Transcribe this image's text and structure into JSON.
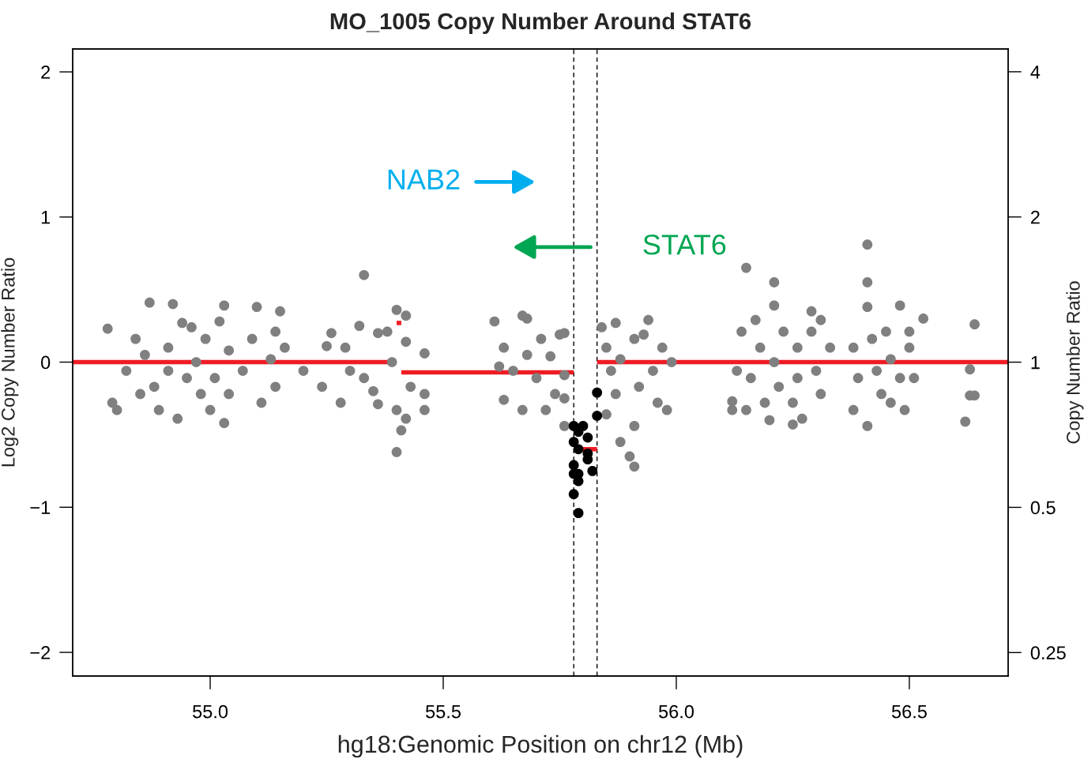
{
  "chart_data": {
    "type": "scatter",
    "title": "MO_1005 Copy Number Around STAT6",
    "xlabel": "hg18:Genomic Position on chr12 (Mb)",
    "ylabel": "Log2 Copy Number Ratio",
    "y2label": "Copy Number Ratio",
    "xlim": [
      54.705,
      56.712
    ],
    "xticks": [
      {
        "value": 55,
        "label": "55.0"
      },
      {
        "value": 55.5,
        "label": "55.5"
      },
      {
        "value": 56,
        "label": "56.0"
      },
      {
        "value": 56.5,
        "label": "56.5"
      }
    ],
    "ylim": [
      -2.163,
      2.158
    ],
    "yticks": [
      {
        "value": -2,
        "label": "−2"
      },
      {
        "value": -1,
        "label": "−1"
      },
      0,
      1,
      2
    ],
    "y2lim": [
      0.2235,
      4.46
    ],
    "y2ticks": [
      0.25,
      0.5,
      1,
      2,
      4
    ],
    "log": "y2",
    "grid": false,
    "legend": false,
    "marker": "circle",
    "series": [
      {
        "color": "#808080",
        "x": [
          54.78,
          54.79,
          54.8,
          54.82,
          54.84,
          54.85,
          54.87,
          54.86,
          54.88,
          54.89,
          54.91,
          54.91,
          54.92,
          54.93,
          54.94,
          54.95,
          54.96,
          54.97,
          54.98,
          54.99,
          55.0,
          55.01,
          55.02,
          55.03,
          55.03,
          55.04,
          55.04,
          55.07,
          55.09,
          55.1,
          55.11,
          55.13,
          55.14,
          55.14,
          55.15,
          55.16,
          55.2,
          55.24,
          55.25,
          55.26,
          55.28,
          55.29,
          55.3,
          55.32,
          55.33,
          55.33,
          55.35,
          55.36,
          55.36,
          55.38,
          55.4,
          55.39,
          55.4,
          55.4,
          55.41,
          55.42,
          55.42,
          55.42,
          55.43,
          55.46,
          55.46,
          55.46,
          55.61,
          55.62,
          55.63,
          55.63,
          55.65,
          55.67,
          55.67,
          55.68,
          55.68,
          55.7,
          55.71,
          55.72,
          55.73,
          55.74,
          55.75,
          55.76,
          55.76,
          55.76,
          55.76,
          55.84,
          55.85,
          55.86,
          55.85,
          55.87,
          55.87,
          55.88,
          55.88,
          55.9,
          55.91,
          55.91,
          55.91,
          55.92,
          55.93,
          55.94,
          55.95,
          55.96,
          55.97,
          55.98,
          55.99,
          56.12,
          56.12,
          56.13,
          56.14,
          56.15,
          56.15,
          56.16,
          56.17,
          56.18,
          56.19,
          56.2,
          56.21,
          56.21,
          56.21,
          56.22,
          56.23,
          56.25,
          56.25,
          56.26,
          56.26,
          56.27,
          56.29,
          56.29,
          56.3,
          56.31,
          56.31,
          56.33,
          56.38,
          56.38,
          56.39,
          56.41,
          56.41,
          56.41,
          56.41,
          56.42,
          56.43,
          56.44,
          56.45,
          56.46,
          56.46,
          56.48,
          56.48,
          56.49,
          56.5,
          56.5,
          56.51,
          56.53,
          56.62,
          56.63,
          56.63,
          56.64,
          56.64
        ],
        "values": [
          0.23,
          -0.28,
          -0.33,
          -0.06,
          0.16,
          -0.22,
          0.41,
          0.05,
          -0.17,
          -0.33,
          0.1,
          -0.06,
          0.4,
          -0.39,
          0.27,
          -0.11,
          0.24,
          0.0,
          -0.22,
          0.16,
          -0.33,
          -0.11,
          0.28,
          0.39,
          -0.42,
          0.08,
          -0.22,
          -0.06,
          0.16,
          0.38,
          -0.28,
          0.02,
          0.21,
          -0.17,
          0.35,
          0.1,
          -0.06,
          -0.17,
          0.11,
          0.2,
          -0.28,
          0.1,
          -0.06,
          0.25,
          0.6,
          -0.11,
          -0.2,
          -0.29,
          0.2,
          0.21,
          0.36,
          0.0,
          -0.33,
          -0.62,
          -0.47,
          0.14,
          0.32,
          -0.39,
          -0.17,
          0.06,
          -0.22,
          -0.33,
          0.28,
          -0.03,
          -0.26,
          0.1,
          -0.06,
          0.32,
          -0.33,
          0.05,
          0.3,
          -0.11,
          0.16,
          -0.33,
          0.04,
          -0.22,
          0.19,
          -0.09,
          -0.25,
          -0.44,
          0.2,
          0.24,
          0.1,
          -0.06,
          -0.36,
          -0.22,
          0.27,
          -0.55,
          0.02,
          -0.65,
          -0.44,
          -0.72,
          0.16,
          -0.17,
          0.19,
          0.29,
          -0.06,
          -0.28,
          0.1,
          -0.33,
          0.0,
          -0.27,
          -0.33,
          -0.06,
          0.21,
          0.65,
          -0.33,
          -0.11,
          0.29,
          0.1,
          -0.28,
          -0.4,
          0.55,
          0.39,
          0.0,
          -0.17,
          0.21,
          -0.43,
          -0.28,
          0.1,
          -0.11,
          -0.39,
          0.35,
          0.21,
          -0.06,
          0.29,
          -0.22,
          0.1,
          -0.33,
          0.1,
          -0.11,
          0.81,
          0.55,
          -0.44,
          0.38,
          0.16,
          -0.06,
          -0.22,
          0.21,
          0.02,
          -0.28,
          0.39,
          -0.11,
          -0.33,
          0.1,
          0.21,
          -0.11,
          0.3,
          -0.41,
          -0.05,
          -0.23,
          0.26,
          -0.23
        ]
      },
      {
        "color": "#000000",
        "x": [
          55.78,
          55.78,
          55.78,
          55.78,
          55.79,
          55.78,
          55.79,
          55.8,
          55.81,
          55.81,
          55.81,
          55.82,
          55.79,
          55.79,
          55.83,
          55.83,
          55.79
        ],
        "values": [
          -0.44,
          -0.55,
          -0.71,
          -0.77,
          -0.82,
          -0.91,
          -1.04,
          -0.44,
          -0.52,
          -0.63,
          -0.67,
          -0.75,
          -0.6,
          -0.48,
          -0.37,
          -0.21,
          -0.77
        ]
      },
      {
        "type": "line",
        "color": "#ee1c24",
        "line_style": "solid",
        "marker": "none",
        "x": [
          54.705,
          55.4
        ],
        "values": [
          0,
          0
        ]
      },
      {
        "type": "line",
        "color": "#ee1c24",
        "line_style": "solid",
        "marker": "none",
        "x": [
          55.4,
          55.41
        ],
        "values": [
          0.27,
          0.27
        ]
      },
      {
        "type": "line",
        "color": "#ee1c24",
        "line_style": "solid",
        "marker": "none",
        "x": [
          55.41,
          55.78
        ],
        "values": [
          -0.07,
          -0.07
        ]
      },
      {
        "type": "line",
        "color": "#ee1c24",
        "line_style": "solid",
        "marker": "none",
        "x": [
          55.78,
          55.83
        ],
        "values": [
          -0.6,
          -0.6
        ]
      },
      {
        "type": "line",
        "color": "#ee1c24",
        "line_style": "solid",
        "marker": "none",
        "x": [
          55.83,
          56.712
        ],
        "values": [
          0,
          0
        ]
      }
    ],
    "ref_lines": [
      {
        "axis": "x",
        "value": 55.78,
        "color": "#000000",
        "line_style": "dashed"
      },
      {
        "axis": "x",
        "value": 55.83,
        "color": "#000000",
        "line_style": "dashed"
      }
    ],
    "annotations": [
      "NAB2",
      "STAT6"
    ]
  }
}
